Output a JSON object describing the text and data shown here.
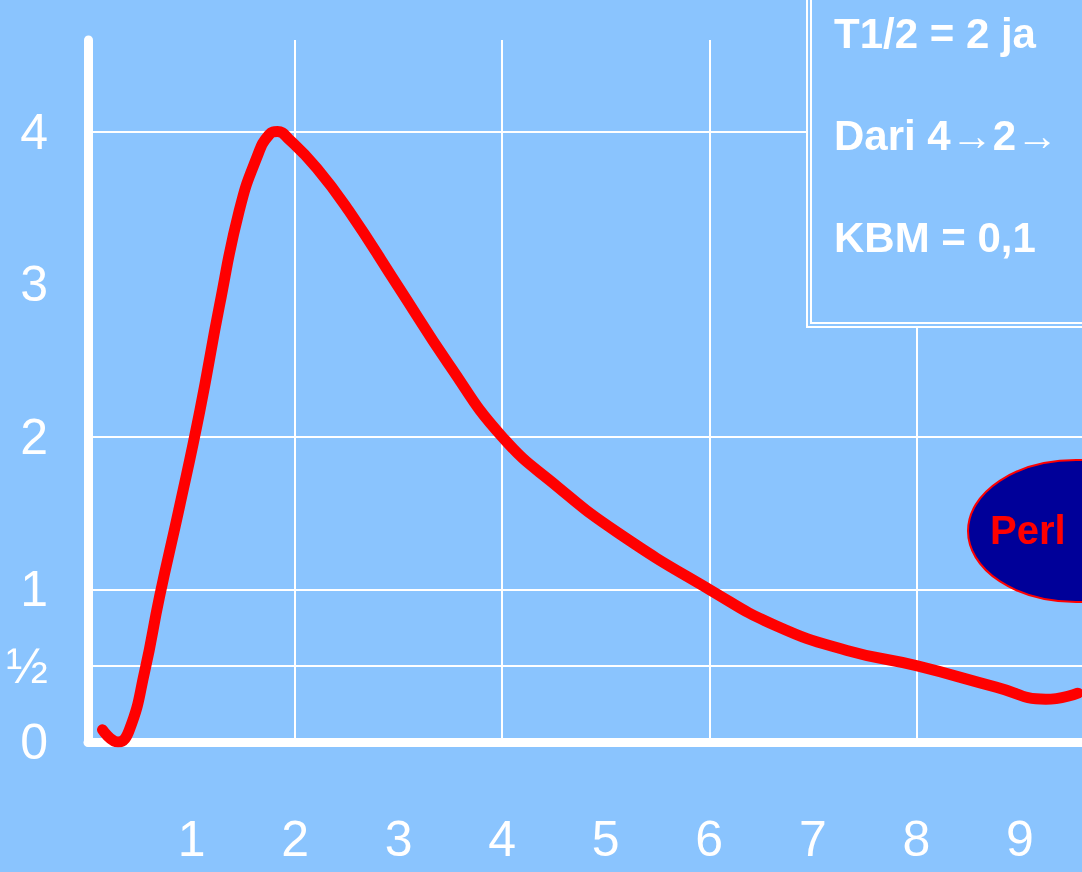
{
  "chart_data": {
    "type": "line",
    "x": [
      0.14,
      0.29,
      0.4,
      0.55,
      0.69,
      0.88,
      1.08,
      1.27,
      1.46,
      1.63,
      1.75,
      1.83,
      1.94,
      2.21,
      2.52,
      3.0,
      3.48,
      4.0,
      4.54,
      5.12,
      6.0,
      6.65,
      7.33,
      8.0,
      8.77,
      9.25,
      9.56
    ],
    "series": [
      {
        "color": "#ff0000",
        "values": [
          0.08,
          0,
          0.08,
          0.47,
          0.95,
          1.53,
          2.17,
          2.86,
          3.48,
          3.83,
          3.98,
          4.0,
          3.95,
          3.76,
          3.48,
          2.98,
          2.48,
          2.0,
          1.67,
          1.37,
          1.0,
          0.76,
          0.6,
          0.5,
          0.36,
          0.28,
          0.32
        ]
      }
    ],
    "xlim": [
      0,
      9.6
    ],
    "xticks": [
      1,
      2,
      3,
      4,
      5,
      6,
      7,
      8,
      9
    ],
    "ylim": [
      0,
      4.6
    ],
    "yticks": [
      0,
      {
        "value": 0.5,
        "label": "½"
      },
      1,
      2,
      3,
      4
    ],
    "grid": false,
    "line_style": "solid",
    "ref_lines": [
      {
        "axis": "x",
        "value": 2,
        "color": "#ffffff"
      },
      {
        "axis": "x",
        "value": 4,
        "color": "#ffffff"
      },
      {
        "axis": "x",
        "value": 6,
        "color": "#ffffff"
      },
      {
        "axis": "x",
        "value": 8,
        "color": "#ffffff"
      },
      {
        "axis": "y",
        "value": 4,
        "color": "#ffffff"
      },
      {
        "axis": "y",
        "value": 2,
        "color": "#ffffff"
      },
      {
        "axis": "y",
        "value": 1,
        "color": "#ffffff"
      },
      {
        "axis": "y",
        "value": 0.5,
        "color": "#ffffff"
      }
    ],
    "annotations": [
      "T1/2 = 2 ja",
      "Dari 4→2→",
      "KBM = 0,1",
      "Perl"
    ]
  }
}
